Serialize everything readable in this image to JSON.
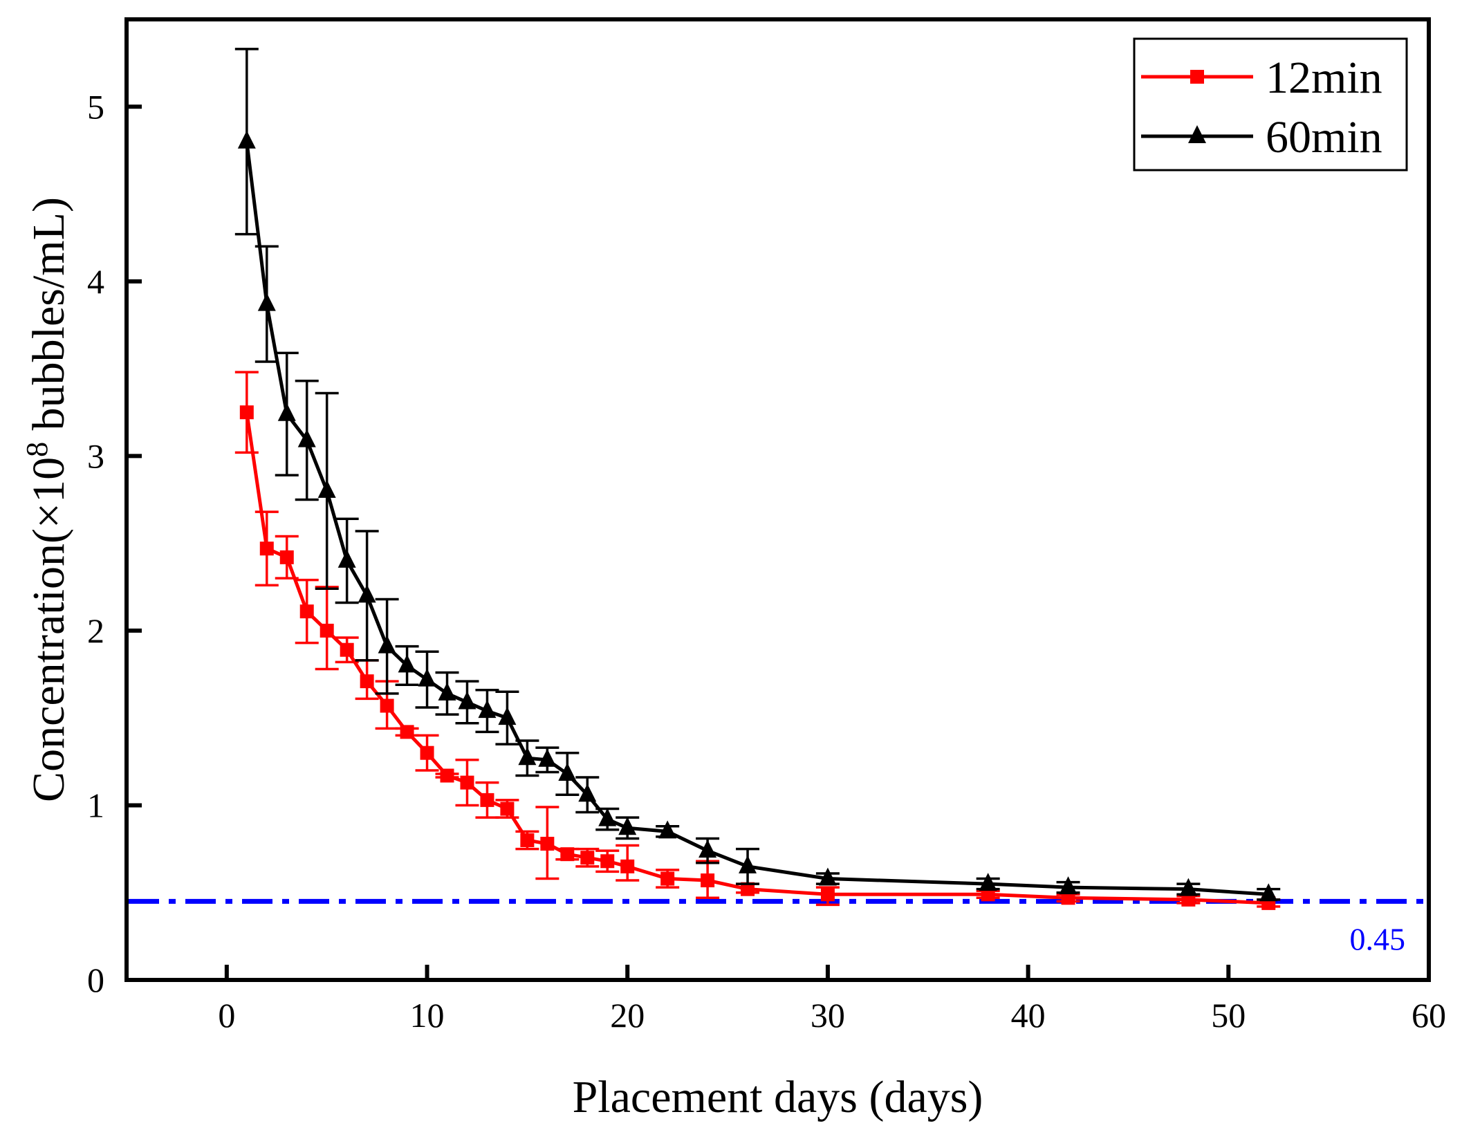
{
  "chart_data": {
    "type": "line",
    "title": "",
    "xlabel": "Placement days (days)",
    "ylabel": {
      "prefix": "Concentration(",
      "multiplier": "×10",
      "exponent": "8",
      "suffix": " bubbles/mL)"
    },
    "xlim": [
      -5,
      60
    ],
    "ylim": [
      0,
      5.5
    ],
    "x_ticks": [
      0,
      10,
      20,
      30,
      40,
      50,
      60
    ],
    "y_ticks": [
      0,
      1,
      2,
      3,
      4,
      5
    ],
    "grid": false,
    "legend_position": "top-right",
    "series": [
      {
        "name": "12min",
        "color": "#ff0000",
        "marker": "square",
        "x": [
          1,
          2,
          3,
          4,
          5,
          6,
          7,
          8,
          9,
          10,
          11,
          12,
          13,
          14,
          15,
          16,
          17,
          18,
          19,
          20,
          22,
          24,
          26,
          30,
          38,
          42,
          48,
          52
        ],
        "y": [
          3.25,
          2.47,
          2.42,
          2.11,
          2.0,
          1.89,
          1.71,
          1.57,
          1.42,
          1.3,
          1.17,
          1.13,
          1.03,
          0.98,
          0.8,
          0.78,
          0.72,
          0.7,
          0.68,
          0.65,
          0.58,
          0.57,
          0.52,
          0.49,
          0.49,
          0.47,
          0.46,
          0.44
        ],
        "err_up": [
          0.23,
          0.21,
          0.12,
          0.18,
          0.25,
          0.07,
          0.12,
          0.14,
          0.02,
          0.1,
          0.01,
          0.13,
          0.1,
          0.05,
          0.05,
          0.21,
          0.03,
          0.05,
          0.06,
          0.12,
          0.05,
          0.11,
          0.03,
          0.04,
          0.02,
          0.02,
          0.02,
          0.02
        ],
        "err_down": [
          0.23,
          0.21,
          0.12,
          0.18,
          0.22,
          0.07,
          0.1,
          0.13,
          0.02,
          0.1,
          0.01,
          0.13,
          0.1,
          0.05,
          0.05,
          0.2,
          0.03,
          0.05,
          0.06,
          0.08,
          0.05,
          0.1,
          0.02,
          0.06,
          0.02,
          0.02,
          0.02,
          0.02
        ]
      },
      {
        "name": "60min",
        "color": "#000000",
        "marker": "triangle",
        "x": [
          1,
          2,
          3,
          4,
          5,
          6,
          7,
          8,
          9,
          10,
          11,
          12,
          13,
          14,
          15,
          16,
          17,
          18,
          19,
          20,
          22,
          24,
          26,
          30,
          38,
          42,
          48,
          52
        ],
        "y": [
          4.8,
          3.87,
          3.24,
          3.09,
          2.8,
          2.4,
          2.2,
          1.91,
          1.8,
          1.72,
          1.64,
          1.59,
          1.54,
          1.5,
          1.27,
          1.26,
          1.18,
          1.06,
          0.92,
          0.87,
          0.85,
          0.74,
          0.65,
          0.58,
          0.55,
          0.53,
          0.52,
          0.49
        ],
        "err_up": [
          0.53,
          0.33,
          0.35,
          0.34,
          0.56,
          0.24,
          0.37,
          0.27,
          0.11,
          0.16,
          0.12,
          0.12,
          0.12,
          0.15,
          0.1,
          0.07,
          0.12,
          0.1,
          0.06,
          0.06,
          0.03,
          0.07,
          0.1,
          0.03,
          0.03,
          0.03,
          0.03,
          0.03
        ],
        "err_down": [
          0.53,
          0.33,
          0.35,
          0.34,
          0.56,
          0.24,
          0.37,
          0.27,
          0.11,
          0.16,
          0.12,
          0.12,
          0.12,
          0.15,
          0.1,
          0.07,
          0.12,
          0.1,
          0.06,
          0.06,
          0.03,
          0.07,
          0.1,
          0.03,
          0.03,
          0.03,
          0.03,
          0.03
        ]
      }
    ],
    "reference_line": {
      "y": 0.45,
      "label": "0.45",
      "color": "#0000ff",
      "style": "dash-dot"
    }
  }
}
